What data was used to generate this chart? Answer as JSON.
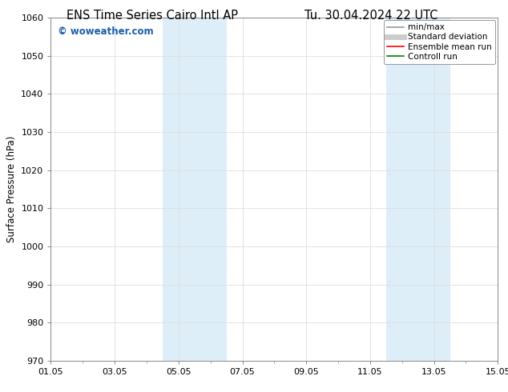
{
  "title_left": "ENS Time Series Cairo Intl AP",
  "title_right": "Tu. 30.04.2024 22 UTC",
  "ylabel": "Surface Pressure (hPa)",
  "ylim": [
    970,
    1060
  ],
  "yticks": [
    970,
    980,
    990,
    1000,
    1010,
    1020,
    1030,
    1040,
    1050,
    1060
  ],
  "xtick_labels": [
    "01.05",
    "03.05",
    "05.05",
    "07.05",
    "09.05",
    "11.05",
    "13.05",
    "15.05"
  ],
  "xtick_positions": [
    0,
    2,
    4,
    6,
    8,
    10,
    12,
    14
  ],
  "x_start": 0,
  "x_end": 14,
  "shaded_bands": [
    {
      "x_start": 3.5,
      "x_end": 5.5
    },
    {
      "x_start": 10.5,
      "x_end": 12.5
    }
  ],
  "shade_color": "#ddeef8",
  "watermark": "© woweather.com",
  "watermark_color": "#1a5faa",
  "bg_color": "#ffffff",
  "plot_bg_color": "#ffffff",
  "grid_color": "#dddddd",
  "spine_color": "#888888",
  "legend_items": [
    {
      "label": "min/max",
      "color": "#999999",
      "lw": 1.2,
      "style": "solid"
    },
    {
      "label": "Standard deviation",
      "color": "#cccccc",
      "lw": 5,
      "style": "solid"
    },
    {
      "label": "Ensemble mean run",
      "color": "#ff0000",
      "lw": 1.2,
      "style": "solid"
    },
    {
      "label": "Controll run",
      "color": "#008000",
      "lw": 1.2,
      "style": "solid"
    }
  ],
  "title_fontsize": 10.5,
  "axis_label_fontsize": 8.5,
  "tick_fontsize": 8,
  "watermark_fontsize": 8.5,
  "legend_fontsize": 7.5
}
